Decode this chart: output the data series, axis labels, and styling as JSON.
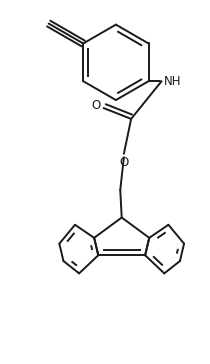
{
  "bg_color": "#ffffff",
  "line_color": "#1a1a1a",
  "line_width": 1.4,
  "font_size": 8.5,
  "figsize": [
    2.1,
    3.64
  ],
  "dpi": 100,
  "xlim": [
    -1.2,
    1.5
  ],
  "ylim": [
    -2.8,
    2.2
  ]
}
